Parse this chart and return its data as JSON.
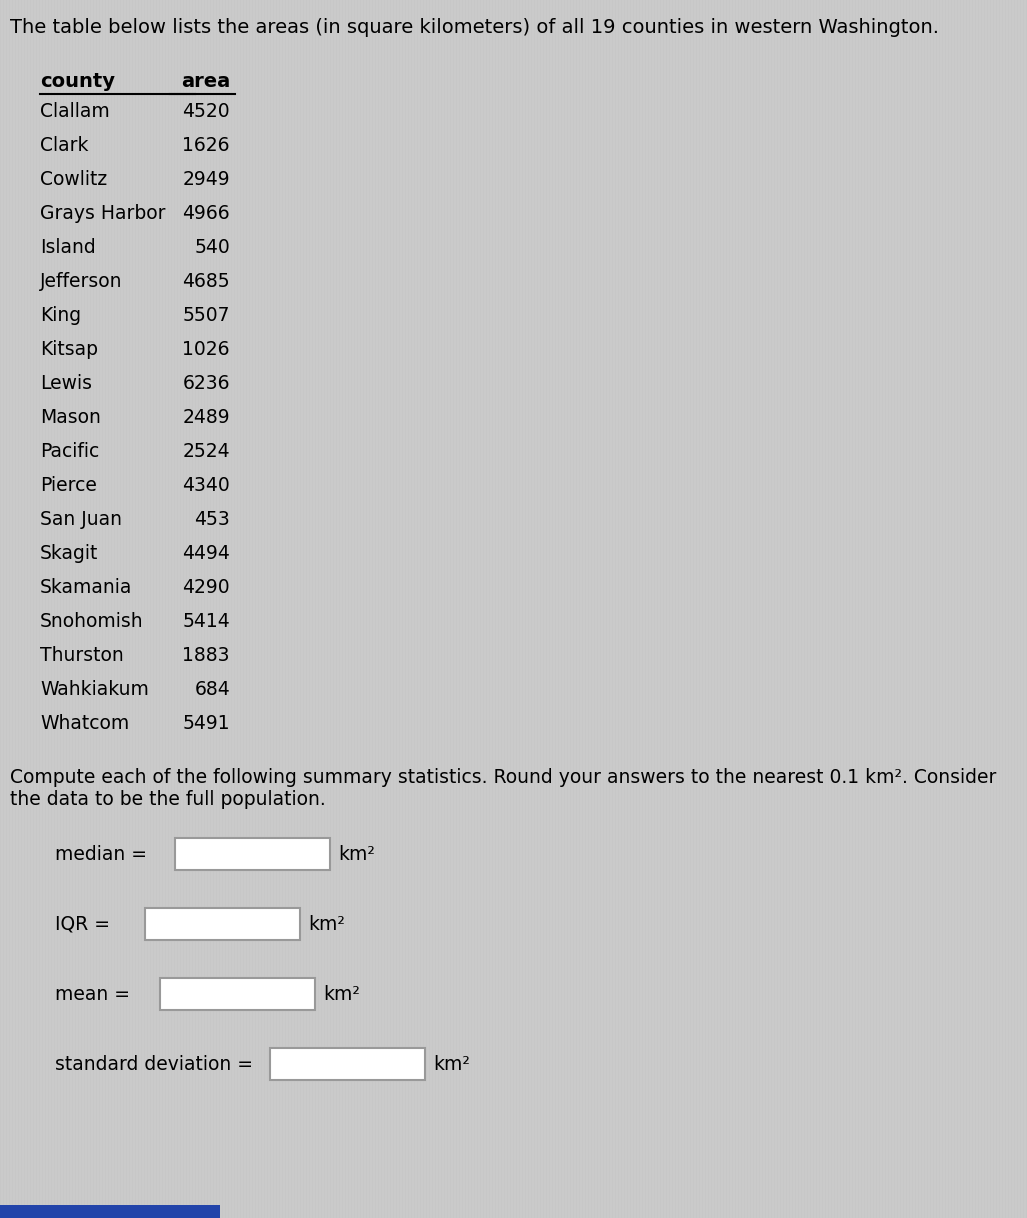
{
  "title": "The table below lists the areas (in square kilometers) of all 19 counties in western Washington.",
  "counties": [
    "Clallam",
    "Clark",
    "Cowlitz",
    "Grays Harbor",
    "Island",
    "Jefferson",
    "King",
    "Kitsap",
    "Lewis",
    "Mason",
    "Pacific",
    "Pierce",
    "San Juan",
    "Skagit",
    "Skamania",
    "Snohomish",
    "Thurston",
    "Wahkiakum",
    "Whatcom"
  ],
  "areas": [
    4520,
    1626,
    2949,
    4966,
    540,
    4685,
    5507,
    1026,
    6236,
    2489,
    2524,
    4340,
    453,
    4494,
    4290,
    5414,
    1883,
    684,
    5491
  ],
  "col_header_county": "county",
  "col_header_area": "area",
  "instruction_text1": "Compute each of the following summary statistics. Round your answers to the nearest 0.1 km². Consider",
  "instruction_text2": "the data to be the full population.",
  "stat_labels": [
    "median =",
    "IQR =",
    "mean =",
    "standard deviation ="
  ],
  "km2_label": "km²",
  "bg_color": "#cbcbcb",
  "title_fontsize": 14,
  "table_fontsize": 13.5,
  "stat_fontsize": 13.5,
  "instr_fontsize": 13.5,
  "header_fontsize": 14,
  "blue_bar_color": "#2244aa"
}
